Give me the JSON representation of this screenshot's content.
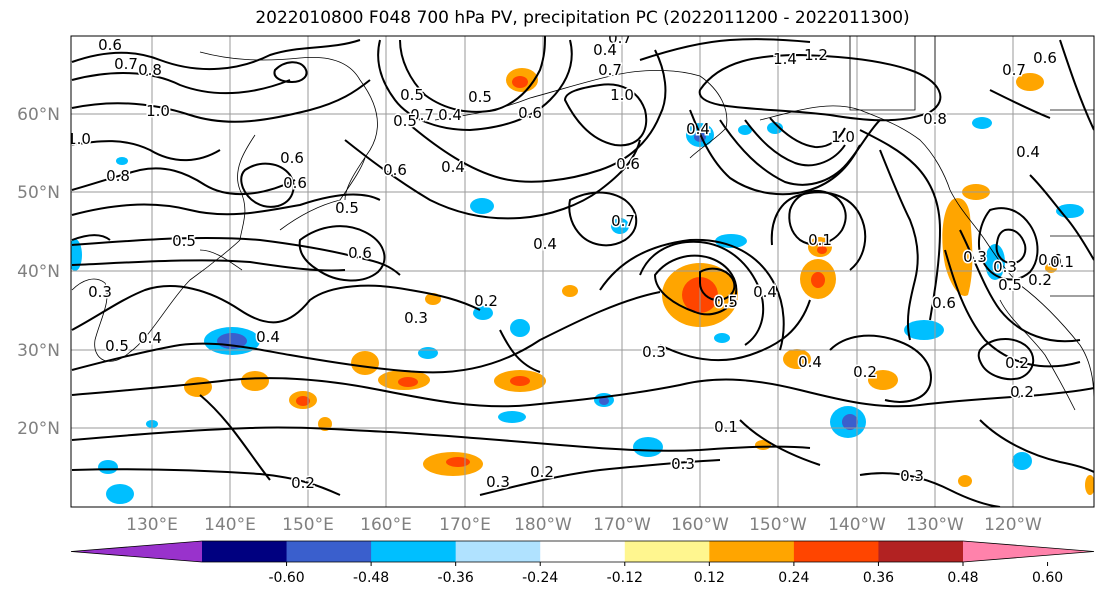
{
  "title": "2022010800 F048 700 hPa PV, precipitation PC (2022011200 - 2022011300)",
  "lat_labels": [
    "60°N",
    "50°N",
    "40°N",
    "30°N",
    "20°N"
  ],
  "lon_labels": [
    "130°E",
    "140°E",
    "150°E",
    "160°E",
    "170°E",
    "180°W",
    "170°W",
    "160°W",
    "150°W",
    "140°W",
    "130°W",
    "120°W"
  ],
  "colorbar": {
    "colors": [
      "#9932CC",
      "#000080",
      "#3A5FCD",
      "#00BFFF",
      "#B0E2FF",
      "#FFFFFF",
      "#FFF68F",
      "#FFA500",
      "#FF4500",
      "#B22222",
      "#FF82AB"
    ],
    "tick_labels": [
      "-0.60",
      "-0.48",
      "-0.36",
      "-0.24",
      "-0.12",
      "0.12",
      "0.24",
      "0.36",
      "0.48",
      "0.60"
    ]
  },
  "contour_labels": [
    "0.6",
    "0.7",
    "0.8",
    "1.0",
    "1.0",
    "0.8",
    "0.6",
    "0.6",
    "0.5",
    "0.6",
    "0.7",
    "0.5",
    "0.4",
    "0.5",
    "0.6",
    "0.4",
    "0.5",
    "0.6",
    "1.0",
    "0.7",
    "0.6",
    "0.7",
    "0.5",
    "0.4",
    "0.4",
    "0.3",
    "0.5",
    "0.4",
    "0.3",
    "0.2",
    "0.2",
    "0.3",
    "0.2",
    "0.3",
    "0.4",
    "0.2",
    "0.3",
    "0.1",
    "0.1",
    "0.5",
    "0.4",
    "0.3",
    "0.2",
    "0.2",
    "0.4",
    "1.4",
    "1.2",
    "0.8",
    "1.0",
    "0.4",
    "0.6",
    "0.3",
    "0.3",
    "0.6",
    "0.5",
    "0.2",
    "0.1",
    "0.7",
    "0.6",
    "0.7",
    "0.4"
  ]
}
